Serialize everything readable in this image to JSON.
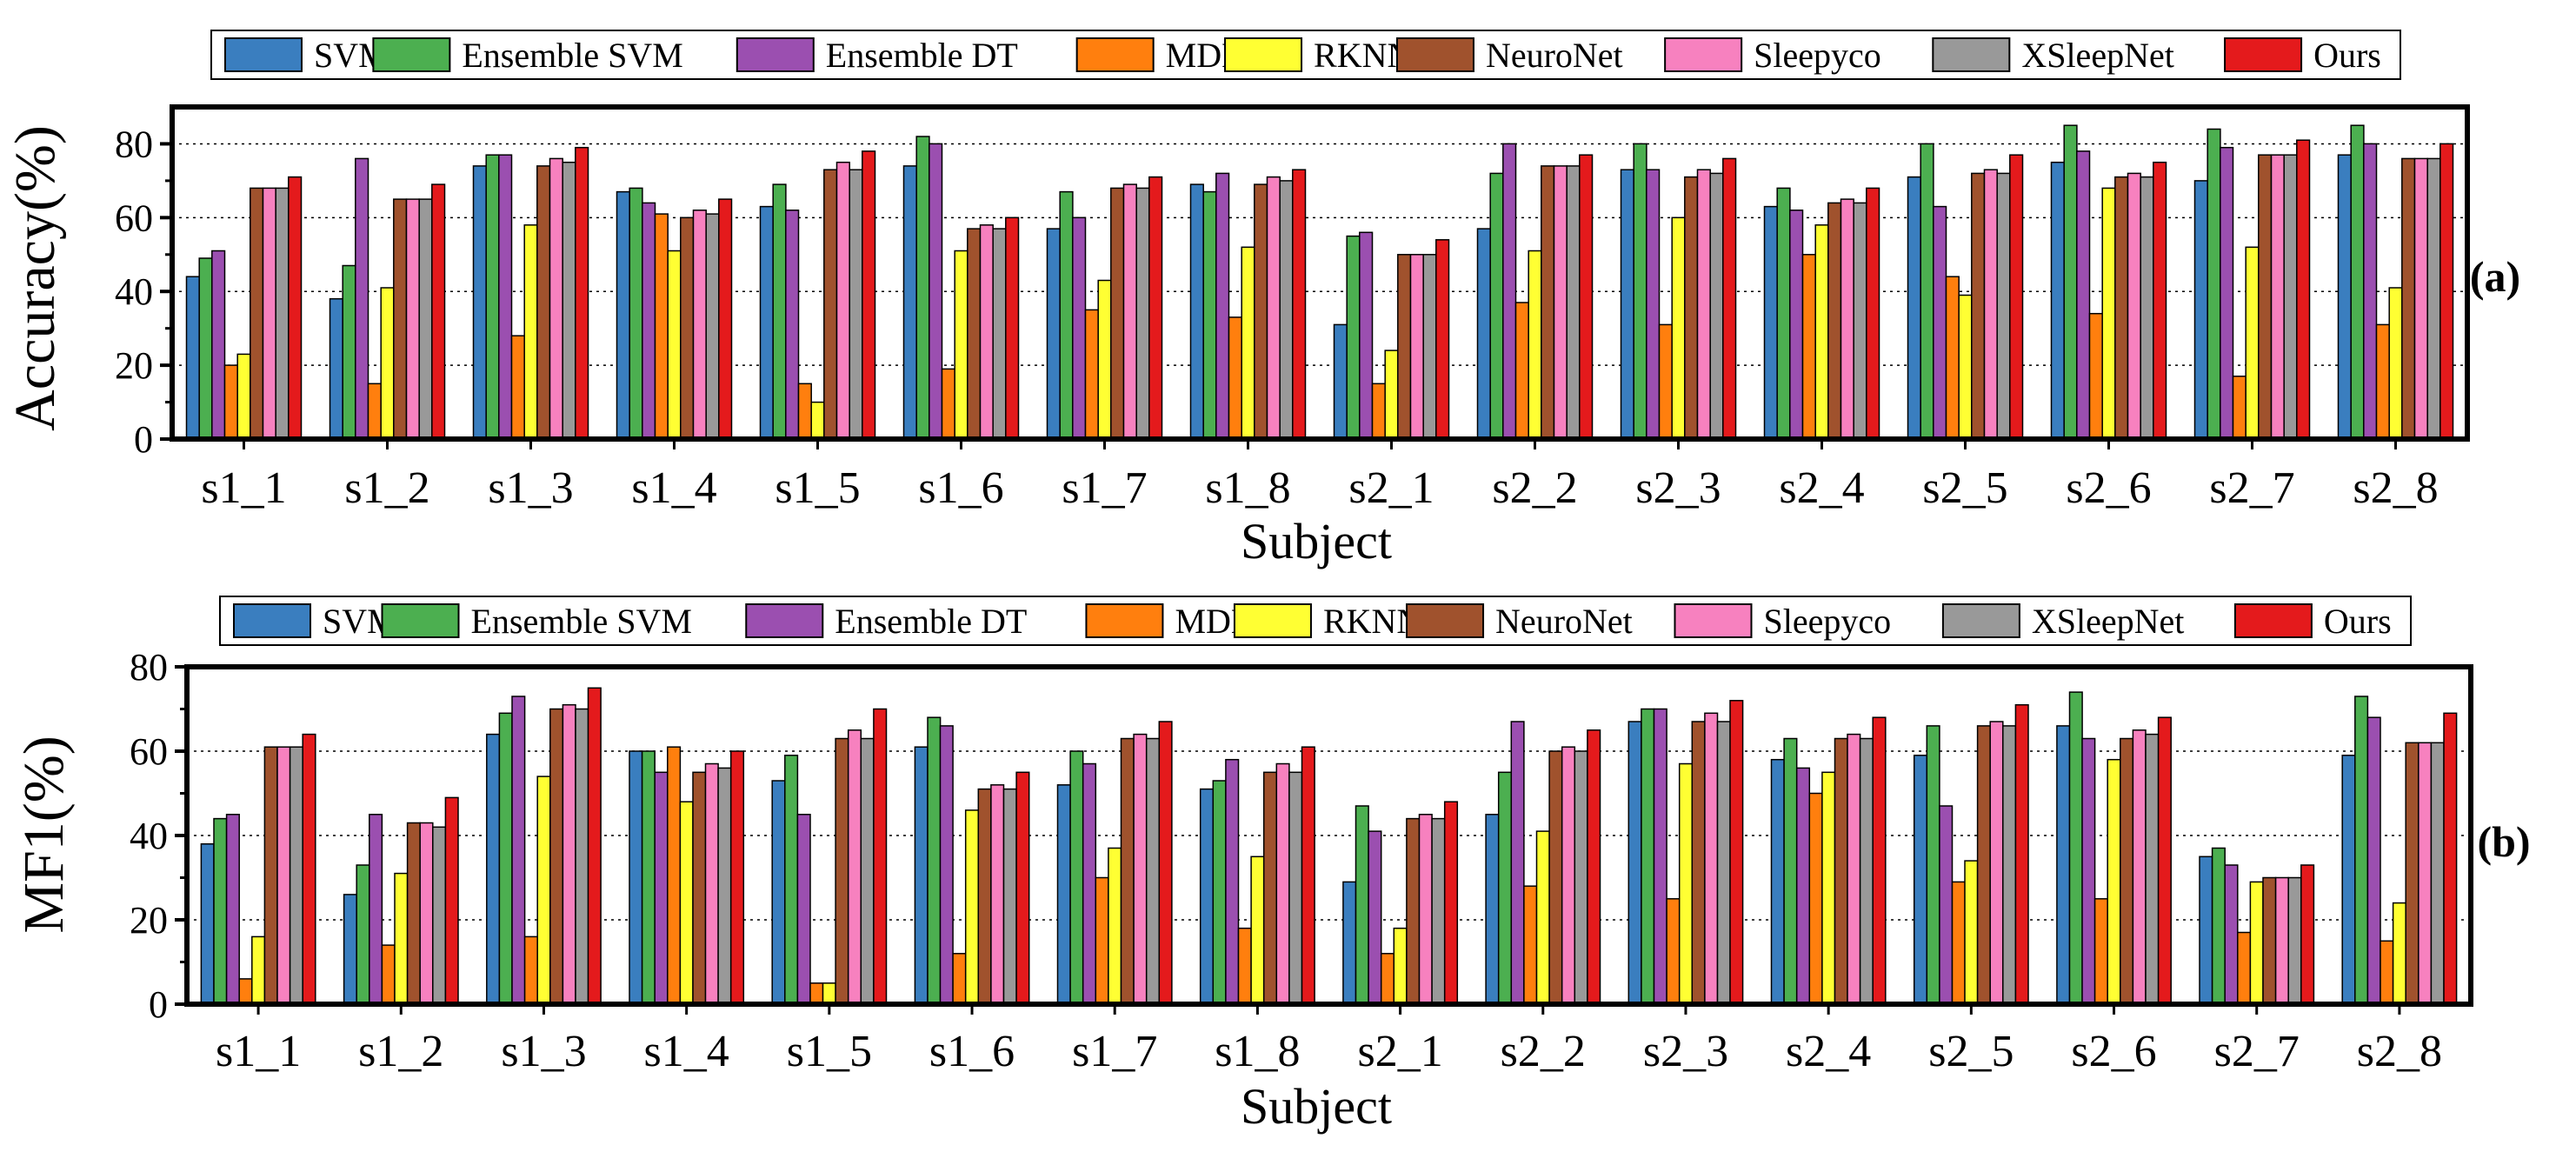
{
  "legend": [
    "SVM",
    "Ensemble SVM",
    "Ensemble DT",
    "MDM",
    "RKNN",
    "NeuroNet",
    "Sleepyco",
    "XSleepNet",
    "Ours"
  ],
  "colors": [
    "#3a7ebf",
    "#4caf50",
    "#9b4fb0",
    "#ff7f0e",
    "#ffff33",
    "#a0522d",
    "#f781bf",
    "#999999",
    "#e41a1c"
  ],
  "chart_data": [
    {
      "type": "bar",
      "panel_label": "(a)",
      "ylabel": "Accuracy(%)",
      "xlabel": "Subject",
      "ylim": [
        0,
        90
      ],
      "yticks": [
        0,
        20,
        40,
        60,
        80
      ],
      "grid": "horizontal dotted",
      "categories": [
        "s1_1",
        "s1_2",
        "s1_3",
        "s1_4",
        "s1_5",
        "s1_6",
        "s1_7",
        "s1_8",
        "s2_1",
        "s2_2",
        "s2_3",
        "s2_4",
        "s2_5",
        "s2_6",
        "s2_7",
        "s2_8"
      ],
      "series": [
        {
          "name": "SVM",
          "values": [
            44,
            38,
            74,
            67,
            63,
            74,
            57,
            69,
            31,
            57,
            73,
            63,
            71,
            75,
            70,
            77
          ]
        },
        {
          "name": "Ensemble SVM",
          "values": [
            49,
            47,
            77,
            68,
            69,
            82,
            67,
            67,
            55,
            72,
            80,
            68,
            80,
            85,
            84,
            85
          ]
        },
        {
          "name": "Ensemble DT",
          "values": [
            51,
            76,
            77,
            64,
            62,
            80,
            60,
            72,
            56,
            80,
            73,
            62,
            63,
            78,
            79,
            80
          ]
        },
        {
          "name": "MDM",
          "values": [
            20,
            15,
            28,
            61,
            15,
            19,
            35,
            33,
            15,
            37,
            31,
            50,
            44,
            34,
            17,
            31
          ]
        },
        {
          "name": "RKNN",
          "values": [
            23,
            41,
            58,
            51,
            10,
            51,
            43,
            52,
            24,
            51,
            60,
            58,
            39,
            68,
            52,
            41
          ]
        },
        {
          "name": "NeuroNet",
          "values": [
            68,
            65,
            74,
            60,
            73,
            57,
            68,
            69,
            50,
            74,
            71,
            64,
            72,
            71,
            77,
            76
          ]
        },
        {
          "name": "Sleepyco",
          "values": [
            68,
            65,
            76,
            62,
            75,
            58,
            69,
            71,
            50,
            74,
            73,
            65,
            73,
            72,
            77,
            76
          ]
        },
        {
          "name": "XSleepNet",
          "values": [
            68,
            65,
            75,
            61,
            73,
            57,
            68,
            70,
            50,
            74,
            72,
            64,
            72,
            71,
            77,
            76
          ]
        },
        {
          "name": "Ours",
          "values": [
            71,
            69,
            79,
            65,
            78,
            60,
            71,
            73,
            54,
            77,
            76,
            68,
            77,
            75,
            81,
            80
          ]
        }
      ]
    },
    {
      "type": "bar",
      "panel_label": "(b)",
      "ylabel": "MF1(%)",
      "xlabel": "Subject",
      "ylim": [
        0,
        80
      ],
      "yticks": [
        0,
        20,
        40,
        60,
        80
      ],
      "grid": "horizontal dotted",
      "categories": [
        "s1_1",
        "s1_2",
        "s1_3",
        "s1_4",
        "s1_5",
        "s1_6",
        "s1_7",
        "s1_8",
        "s2_1",
        "s2_2",
        "s2_3",
        "s2_4",
        "s2_5",
        "s2_6",
        "s2_7",
        "s2_8"
      ],
      "series": [
        {
          "name": "SVM",
          "values": [
            38,
            26,
            64,
            60,
            53,
            61,
            52,
            51,
            29,
            45,
            67,
            58,
            59,
            66,
            35,
            59
          ]
        },
        {
          "name": "Ensemble SVM",
          "values": [
            44,
            33,
            69,
            60,
            59,
            68,
            60,
            53,
            47,
            55,
            70,
            63,
            66,
            74,
            37,
            73
          ]
        },
        {
          "name": "Ensemble DT",
          "values": [
            45,
            45,
            73,
            55,
            45,
            66,
            57,
            58,
            41,
            67,
            70,
            56,
            47,
            63,
            33,
            68
          ]
        },
        {
          "name": "MDM",
          "values": [
            6,
            14,
            16,
            61,
            5,
            12,
            30,
            18,
            12,
            28,
            25,
            50,
            29,
            25,
            17,
            15
          ]
        },
        {
          "name": "RKNN",
          "values": [
            16,
            31,
            54,
            48,
            5,
            46,
            37,
            35,
            18,
            41,
            57,
            55,
            34,
            58,
            29,
            24
          ]
        },
        {
          "name": "NeuroNet",
          "values": [
            61,
            43,
            70,
            55,
            63,
            51,
            63,
            55,
            44,
            60,
            67,
            63,
            66,
            63,
            30,
            62
          ]
        },
        {
          "name": "Sleepyco",
          "values": [
            61,
            43,
            71,
            57,
            65,
            52,
            64,
            57,
            45,
            61,
            69,
            64,
            67,
            65,
            30,
            62
          ]
        },
        {
          "name": "XSleepNet",
          "values": [
            61,
            42,
            70,
            56,
            63,
            51,
            63,
            55,
            44,
            60,
            67,
            63,
            66,
            64,
            30,
            62
          ]
        },
        {
          "name": "Ours",
          "values": [
            64,
            49,
            75,
            60,
            70,
            55,
            67,
            61,
            48,
            65,
            72,
            68,
            71,
            68,
            33,
            69
          ]
        }
      ]
    }
  ]
}
